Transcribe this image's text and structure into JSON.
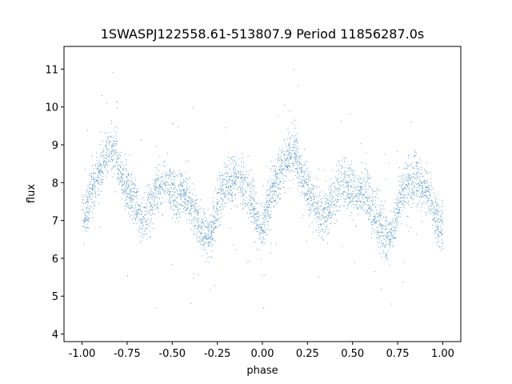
{
  "chart_data": {
    "type": "scatter",
    "title": "1SWASPJ122558.61-513807.9 Period 11856287.0s",
    "xlabel": "phase",
    "ylabel": "flux",
    "xlim": [
      -1.1,
      1.1
    ],
    "ylim": [
      3.8,
      11.6
    ],
    "x_ticks": [
      "-1.00",
      "-0.75",
      "-0.50",
      "-0.25",
      "0.00",
      "0.25",
      "0.50",
      "0.75",
      "1.00"
    ],
    "x_tick_values": [
      -1.0,
      -0.75,
      -0.5,
      -0.25,
      0.0,
      0.25,
      0.5,
      0.75,
      1.0
    ],
    "y_ticks": [
      "4",
      "5",
      "6",
      "7",
      "8",
      "9",
      "10",
      "11"
    ],
    "y_tick_values": [
      4,
      5,
      6,
      7,
      8,
      9,
      10,
      11
    ],
    "grid": false,
    "marker_color": "#1f77b4",
    "series": [
      {
        "trend_phase": [
          0.0,
          0.03,
          0.06,
          0.1,
          0.14,
          0.18,
          0.2,
          0.22,
          0.26,
          0.3,
          0.33,
          0.36,
          0.4,
          0.44,
          0.48,
          0.52,
          0.55,
          0.58,
          0.62,
          0.66,
          0.7,
          0.73,
          0.76,
          0.8,
          0.85,
          0.9,
          0.94,
          0.98,
          1.0
        ],
        "trend_flux": [
          6.9,
          7.4,
          7.9,
          8.3,
          8.8,
          8.9,
          8.6,
          8.1,
          7.7,
          7.4,
          7.0,
          7.3,
          7.7,
          8.0,
          7.9,
          7.6,
          7.8,
          7.6,
          7.2,
          6.8,
          6.5,
          6.9,
          7.6,
          8.0,
          8.1,
          7.9,
          7.5,
          6.8,
          6.9
        ],
        "scatter_spread": 0.45
      }
    ]
  }
}
